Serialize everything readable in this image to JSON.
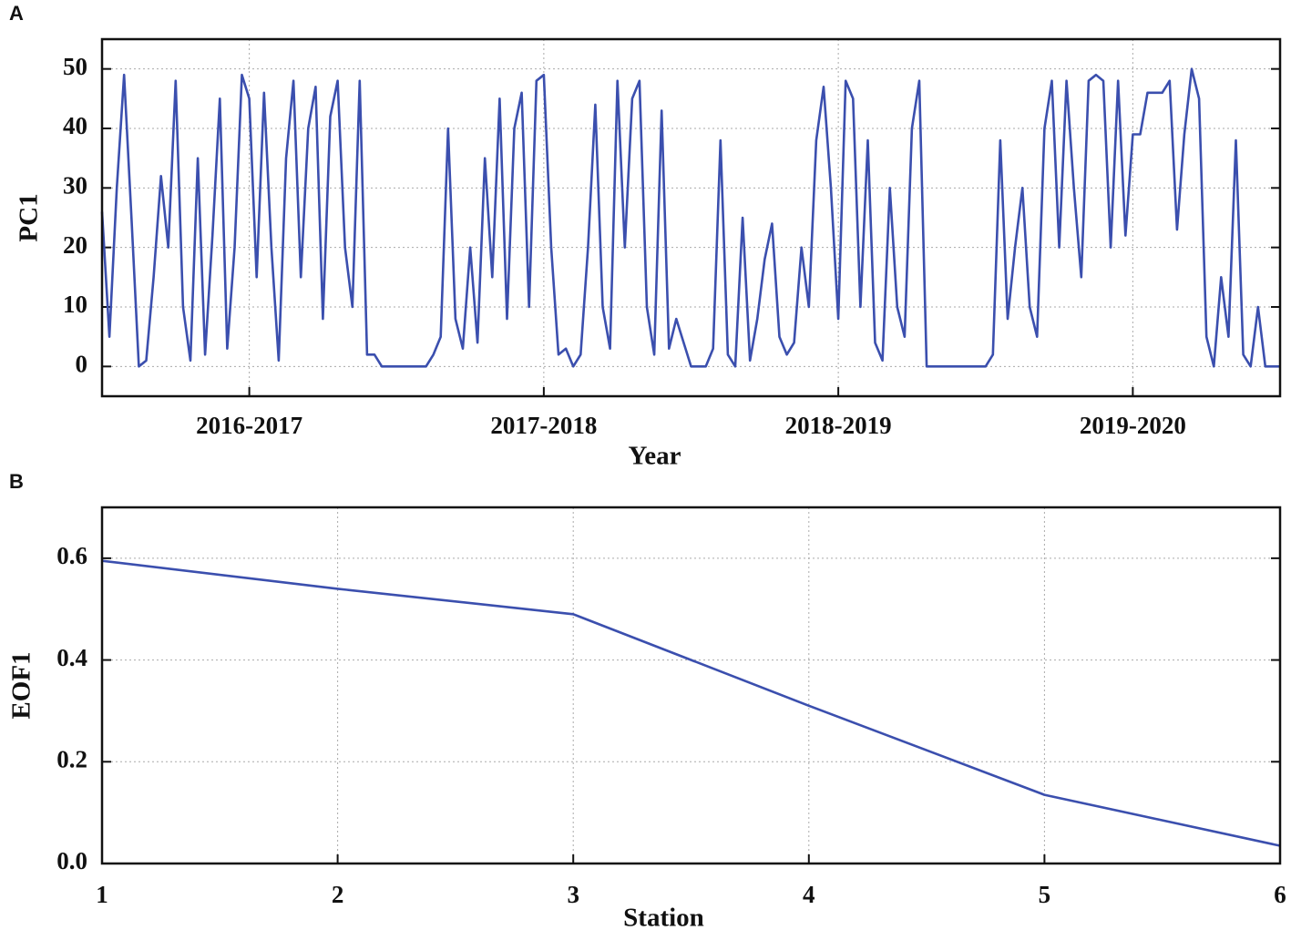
{
  "chart_data": [
    {
      "type": "line",
      "label": "A",
      "ylabel": "PC1",
      "xlabel": "Year",
      "xlim": [
        0,
        4
      ],
      "xticks": [
        {
          "value": 0.5,
          "label": "2016-2017"
        },
        {
          "value": 1.5,
          "label": "2017-2018"
        },
        {
          "value": 2.5,
          "label": "2018-2019"
        },
        {
          "value": 3.5,
          "label": "2019-2020"
        }
      ],
      "ylim": [
        -5,
        55
      ],
      "yticks": [
        0,
        10,
        20,
        30,
        40,
        50
      ],
      "grid": true,
      "x": [
        0,
        0.025,
        0.05,
        0.075,
        0.1,
        0.125,
        0.15,
        0.175,
        0.2,
        0.225,
        0.25,
        0.275,
        0.3,
        0.325,
        0.35,
        0.375,
        0.4,
        0.425,
        0.45,
        0.475,
        0.5,
        0.525,
        0.55,
        0.575,
        0.6,
        0.625,
        0.65,
        0.675,
        0.7,
        0.725,
        0.75,
        0.775,
        0.8,
        0.825,
        0.85,
        0.875,
        0.9,
        0.925,
        0.95,
        0.975,
        1,
        1.025,
        1.05,
        1.075,
        1.1,
        1.125,
        1.15,
        1.175,
        1.2,
        1.225,
        1.25,
        1.275,
        1.3,
        1.325,
        1.35,
        1.375,
        1.4,
        1.425,
        1.45,
        1.475,
        1.5,
        1.525,
        1.55,
        1.575,
        1.6,
        1.625,
        1.65,
        1.675,
        1.7,
        1.725,
        1.75,
        1.775,
        1.8,
        1.825,
        1.85,
        1.875,
        1.9,
        1.925,
        1.95,
        1.975,
        2,
        2.025,
        2.05,
        2.075,
        2.1,
        2.125,
        2.15,
        2.175,
        2.2,
        2.225,
        2.25,
        2.275,
        2.3,
        2.325,
        2.35,
        2.375,
        2.4,
        2.425,
        2.45,
        2.475,
        2.5,
        2.525,
        2.55,
        2.575,
        2.6,
        2.625,
        2.65,
        2.675,
        2.7,
        2.725,
        2.75,
        2.775,
        2.8,
        2.825,
        2.85,
        2.875,
        2.9,
        2.925,
        2.95,
        2.975,
        3,
        3.025,
        3.05,
        3.075,
        3.1,
        3.125,
        3.15,
        3.175,
        3.2,
        3.225,
        3.25,
        3.275,
        3.3,
        3.325,
        3.35,
        3.375,
        3.4,
        3.425,
        3.45,
        3.475,
        3.5,
        3.525,
        3.55,
        3.575,
        3.6,
        3.625,
        3.65,
        3.675,
        3.7,
        3.725,
        3.75,
        3.775,
        3.8,
        3.825,
        3.85,
        3.875,
        3.9,
        3.925,
        3.95,
        3.975,
        4
      ],
      "series": [
        {
          "color": "#3b4fae",
          "values": [
            26,
            5,
            30,
            49,
            25,
            0,
            1,
            15,
            32,
            20,
            48,
            10,
            1,
            35,
            2,
            22,
            45,
            3,
            20,
            49,
            45,
            15,
            46,
            20,
            1,
            35,
            48,
            15,
            40,
            47,
            8,
            42,
            48,
            20,
            10,
            48,
            2,
            2,
            0,
            0,
            0,
            0,
            0,
            0,
            0,
            2,
            5,
            40,
            8,
            3,
            20,
            4,
            35,
            15,
            45,
            8,
            40,
            46,
            10,
            48,
            49,
            20,
            2,
            3,
            0,
            2,
            20,
            44,
            10,
            3,
            48,
            20,
            45,
            48,
            10,
            2,
            43,
            3,
            8,
            4,
            0,
            0,
            0,
            3,
            38,
            2,
            0,
            25,
            1,
            8,
            18,
            24,
            5,
            2,
            4,
            20,
            10,
            38,
            47,
            30,
            8,
            48,
            45,
            10,
            38,
            4,
            1,
            30,
            10,
            5,
            40,
            48,
            0,
            0,
            0,
            0,
            0,
            0,
            0,
            0,
            0,
            2,
            38,
            8,
            20,
            30,
            10,
            5,
            40,
            48,
            20,
            48,
            30,
            15,
            48,
            49,
            48,
            20,
            48,
            22,
            39,
            39,
            46,
            46,
            46,
            48,
            23,
            39,
            50,
            45,
            5,
            0,
            15,
            5,
            38,
            2,
            0,
            10,
            0,
            0,
            0
          ]
        }
      ]
    },
    {
      "type": "line",
      "label": "B",
      "ylabel": "EOF1",
      "xlabel": "Station",
      "xlim": [
        1,
        6
      ],
      "xticks": [
        1,
        2,
        3,
        4,
        5,
        6
      ],
      "ylim": [
        0,
        0.7
      ],
      "yticks": [
        {
          "value": 0,
          "label": "0.0"
        },
        0.2,
        0.4,
        0.6
      ],
      "grid": true,
      "x": [
        1,
        2,
        3,
        4,
        5,
        6
      ],
      "series": [
        {
          "color": "#3b4fae",
          "values": [
            0.595,
            0.54,
            0.49,
            0.31,
            0.135,
            0.035
          ]
        }
      ]
    }
  ]
}
